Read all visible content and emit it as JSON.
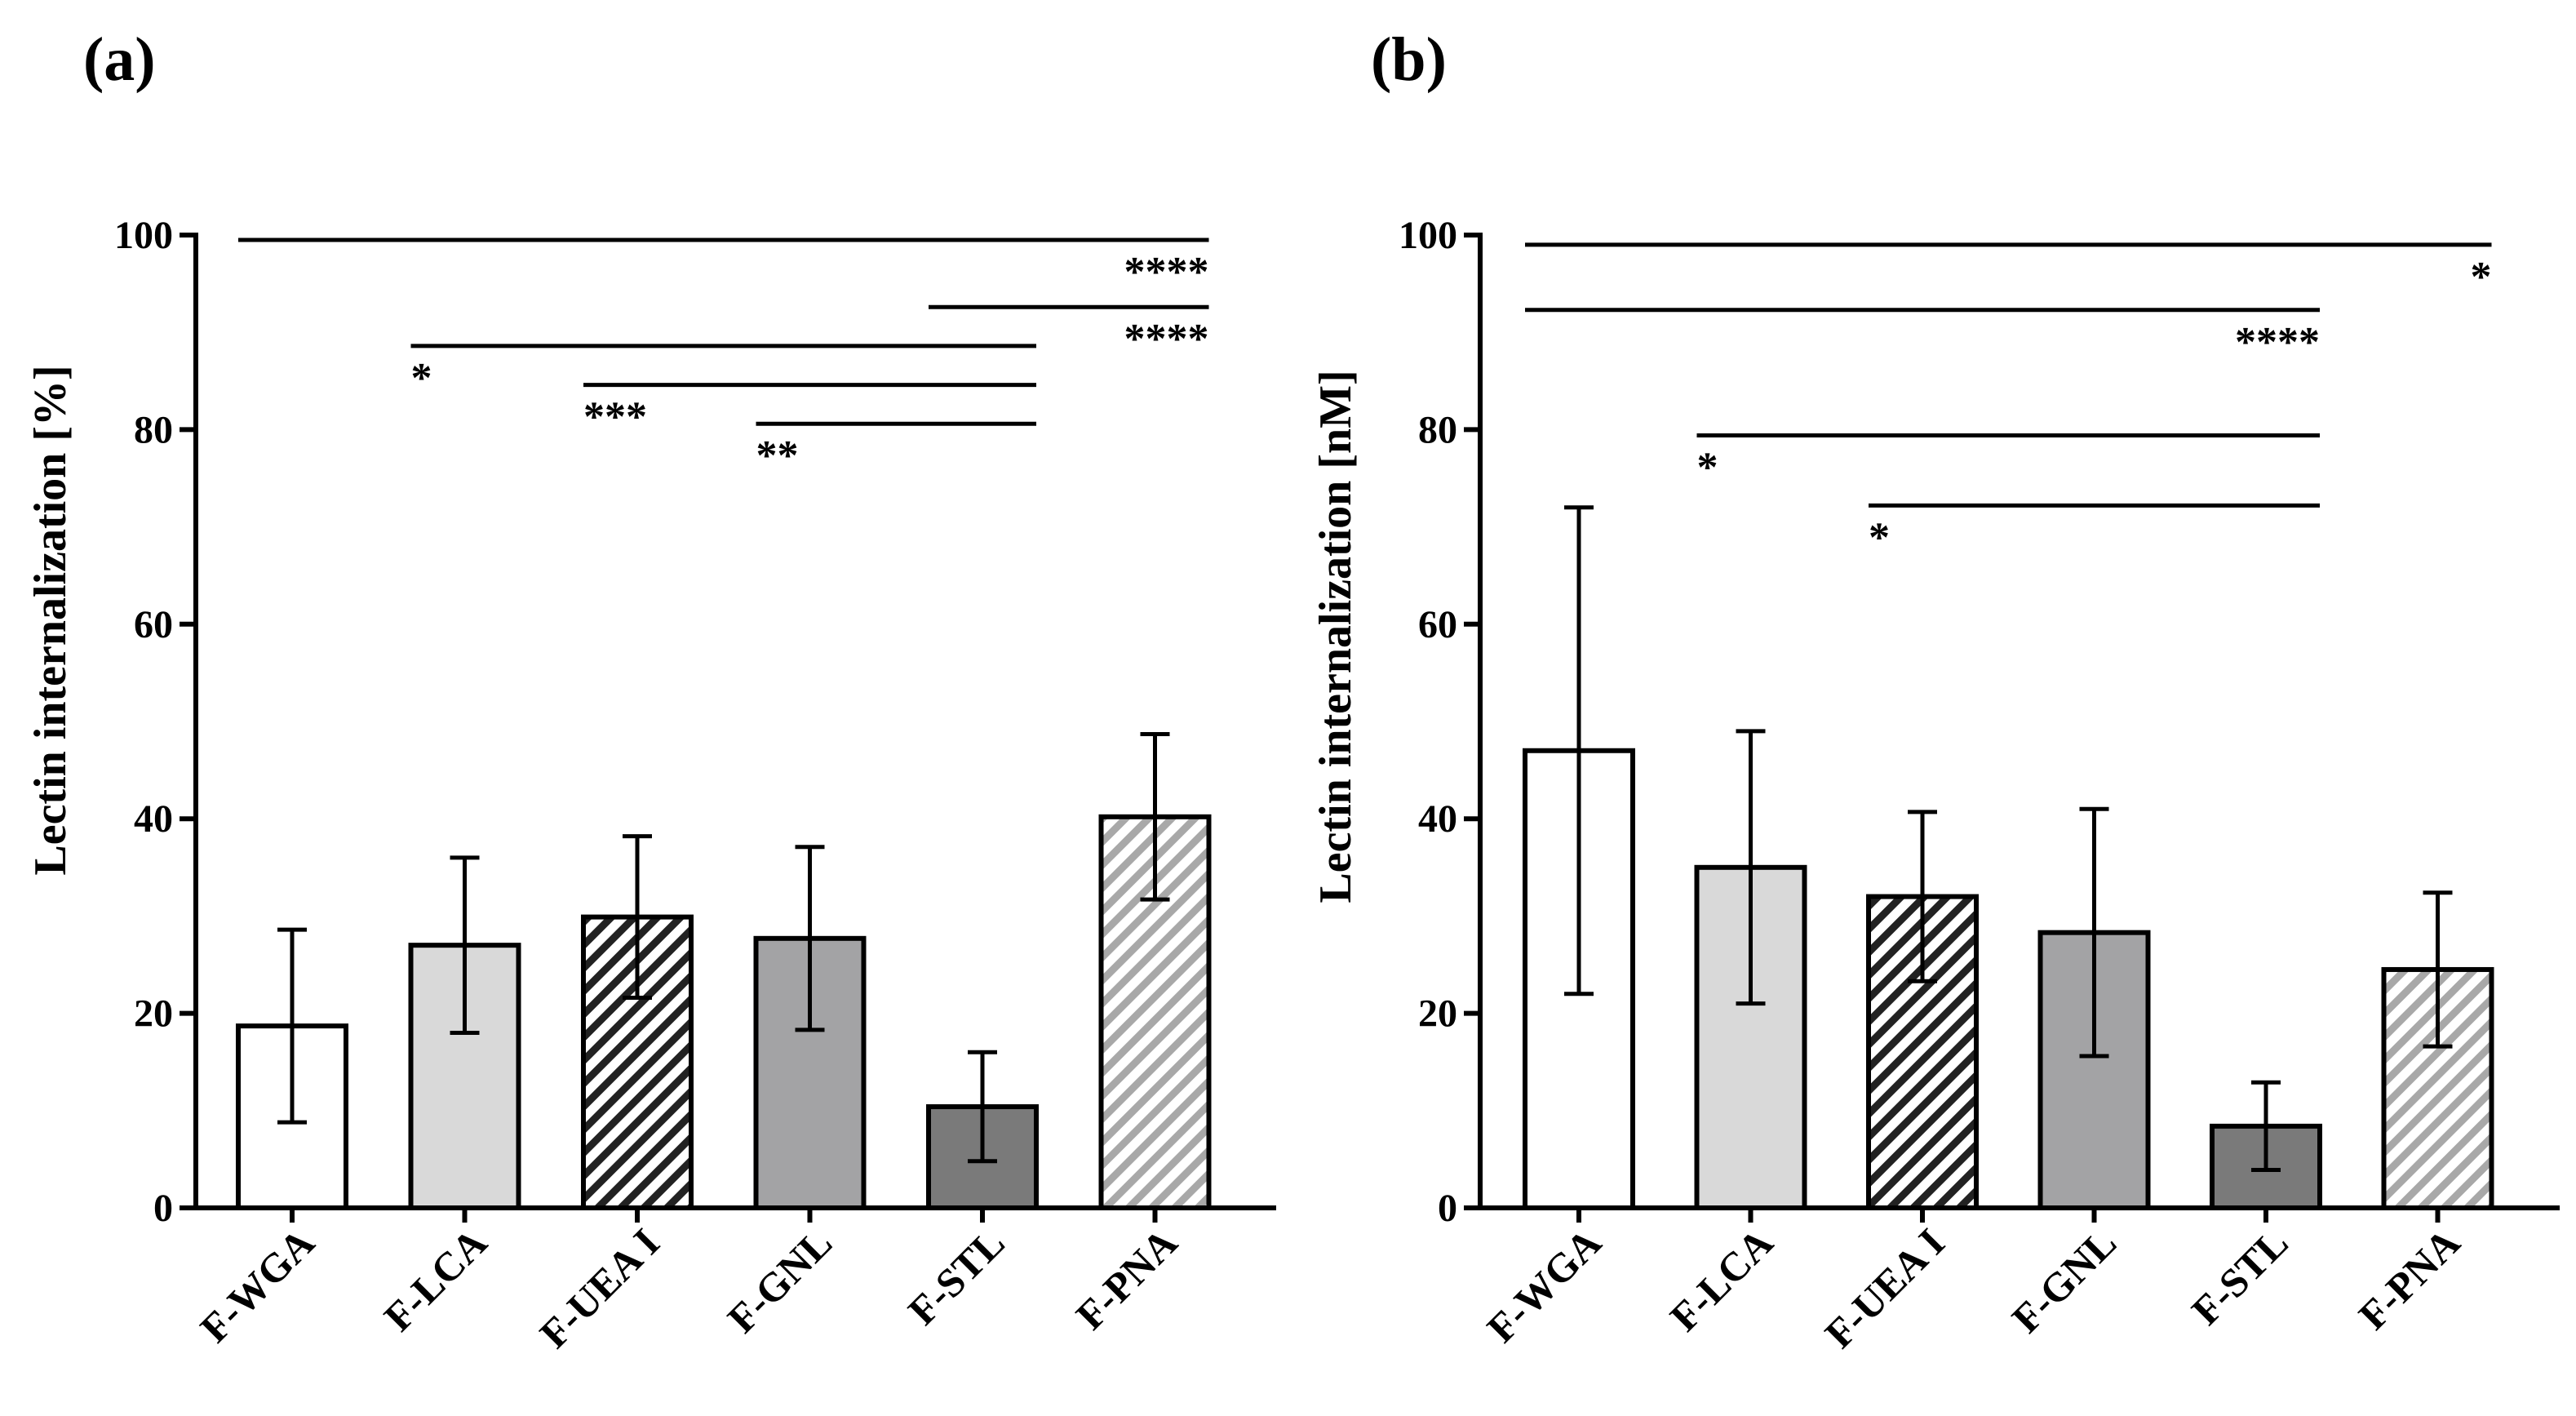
{
  "chart_data": [
    {
      "type": "bar",
      "panel_label": "(a)",
      "title": "",
      "xlabel": "",
      "ylabel": "Lectin internalization [%]",
      "ylim": [
        0,
        100
      ],
      "yticks": [
        "0",
        "20",
        "40",
        "60",
        "80",
        "100"
      ],
      "categories": [
        "F-WGA",
        "F-LCA",
        "F-UEA I",
        "F-GNL",
        "F-STL",
        "F-PNA"
      ],
      "values": [
        18.7,
        27.0,
        29.9,
        27.7,
        10.4,
        40.2
      ],
      "errors": [
        9.9,
        9.0,
        8.3,
        9.4,
        5.6,
        8.5
      ],
      "bar_styles": [
        {
          "fill": "#ffffff",
          "hatch": ""
        },
        {
          "fill": "#d9d9d9",
          "hatch": ""
        },
        {
          "fill": "#ffffff",
          "hatch": "#222222"
        },
        {
          "fill": "#a3a3a5",
          "hatch": ""
        },
        {
          "fill": "#7a7a7a",
          "hatch": ""
        },
        {
          "fill": "#ffffff",
          "hatch": "#a8a8a8"
        }
      ],
      "significance": [
        {
          "from": 0,
          "to": 5,
          "y": 99.5,
          "label": "****",
          "label_side": "right"
        },
        {
          "from": 4,
          "to": 5,
          "y": 92.6,
          "label": "****",
          "label_side": "right"
        },
        {
          "from": 1,
          "to": 4,
          "y": 88.6,
          "label": "*",
          "label_side": "left"
        },
        {
          "from": 2,
          "to": 4,
          "y": 84.6,
          "label": "***",
          "label_side": "left"
        },
        {
          "from": 3,
          "to": 4,
          "y": 80.6,
          "label": "**",
          "label_side": "left"
        }
      ]
    },
    {
      "type": "bar",
      "panel_label": "(b)",
      "title": "",
      "xlabel": "",
      "ylabel": "Lectin internalization [nM]",
      "ylim": [
        0,
        100
      ],
      "yticks": [
        "0",
        "20",
        "40",
        "60",
        "80",
        "100"
      ],
      "categories": [
        "F-WGA",
        "F-LCA",
        "F-UEA I",
        "F-GNL",
        "F-STL",
        "F-PNA"
      ],
      "values": [
        47.0,
        35.0,
        32.0,
        28.3,
        8.4,
        24.5
      ],
      "errors": [
        25.0,
        14.0,
        8.7,
        12.7,
        4.5,
        7.9
      ],
      "bar_styles": [
        {
          "fill": "#ffffff",
          "hatch": ""
        },
        {
          "fill": "#d9d9d9",
          "hatch": ""
        },
        {
          "fill": "#ffffff",
          "hatch": "#222222"
        },
        {
          "fill": "#a3a3a5",
          "hatch": ""
        },
        {
          "fill": "#7a7a7a",
          "hatch": ""
        },
        {
          "fill": "#ffffff",
          "hatch": "#a8a8a8"
        }
      ],
      "significance": [
        {
          "from": 0,
          "to": 5,
          "y": 99.0,
          "label": "*",
          "label_side": "right"
        },
        {
          "from": 0,
          "to": 4,
          "y": 92.3,
          "label": "****",
          "label_side": "right"
        },
        {
          "from": 1,
          "to": 4,
          "y": 79.4,
          "label": "*",
          "label_side": "left"
        },
        {
          "from": 2,
          "to": 4,
          "y": 72.2,
          "label": "*",
          "label_side": "left"
        }
      ]
    }
  ]
}
